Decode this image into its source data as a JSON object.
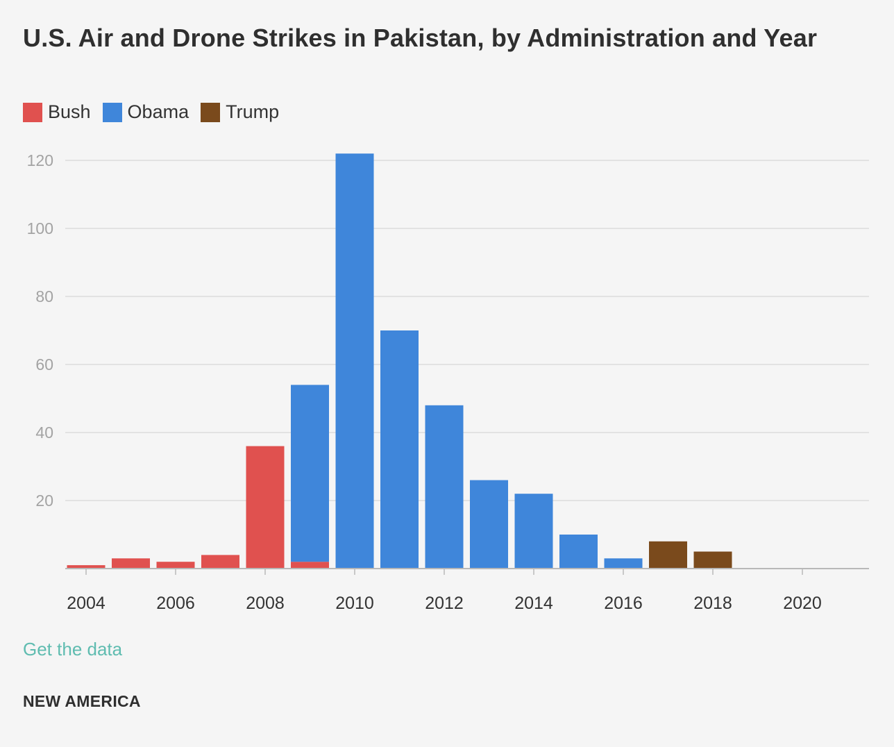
{
  "chart_data": {
    "type": "bar",
    "stacked": true,
    "title": "U.S. Air and Drone Strikes in Pakistan, by Administration and Year",
    "xlabel": "",
    "ylabel": "",
    "ylim": [
      0,
      120
    ],
    "yticks": [
      20,
      40,
      60,
      80,
      100,
      120
    ],
    "xticks": [
      2004,
      2006,
      2008,
      2010,
      2012,
      2014,
      2016,
      2018,
      2020
    ],
    "x": [
      2004,
      2005,
      2006,
      2007,
      2008,
      2009,
      2010,
      2011,
      2012,
      2013,
      2014,
      2015,
      2016,
      2017,
      2018,
      2019,
      2020
    ],
    "grid": true,
    "legend_position": "top-left",
    "series": [
      {
        "name": "Bush",
        "color": "#e0514f",
        "values": [
          1,
          3,
          2,
          4,
          36,
          2,
          0,
          0,
          0,
          0,
          0,
          0,
          0,
          0,
          0,
          0,
          0
        ]
      },
      {
        "name": "Obama",
        "color": "#3f86da",
        "values": [
          0,
          0,
          0,
          0,
          0,
          52,
          122,
          70,
          48,
          26,
          22,
          10,
          3,
          0,
          0,
          0,
          0
        ]
      },
      {
        "name": "Trump",
        "color": "#7a4a1c",
        "values": [
          0,
          0,
          0,
          0,
          0,
          0,
          0,
          0,
          0,
          0,
          0,
          0,
          0,
          8,
          5,
          0,
          0
        ]
      }
    ]
  },
  "footer": {
    "data_link": "Get the data",
    "brand": "NEW AMERICA"
  }
}
